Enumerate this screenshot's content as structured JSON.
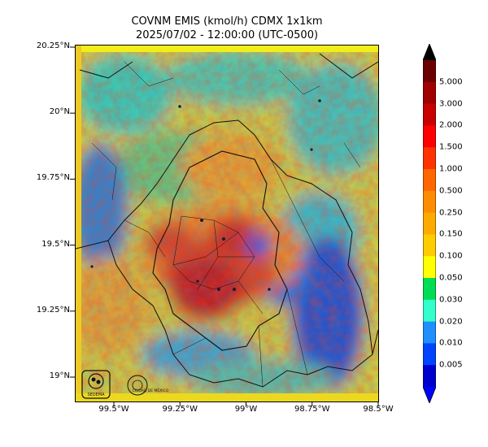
{
  "title_line1": "COVNM EMIS (kmol/h) CDMX 1x1km",
  "title_line2": "2025/07/02 - 12:00:00 (UTC-0500)",
  "lat_ticks": [
    {
      "label": "20.25°N",
      "value": 20.25
    },
    {
      "label": "20°N",
      "value": 20.0
    },
    {
      "label": "19.75°N",
      "value": 19.75
    },
    {
      "label": "19.5°N",
      "value": 19.5
    },
    {
      "label": "19.25°N",
      "value": 19.25
    },
    {
      "label": "19°N",
      "value": 19.0
    }
  ],
  "lon_ticks": [
    {
      "label": "99.5°W",
      "value": -99.5
    },
    {
      "label": "99.25°W",
      "value": -99.25
    },
    {
      "label": "99°W",
      "value": -99.0
    },
    {
      "label": "98.75°W",
      "value": -98.75
    },
    {
      "label": "98.5°W",
      "value": -98.5
    }
  ],
  "colorbar": {
    "levels": [
      "5.000",
      "3.000",
      "2.000",
      "1.500",
      "1.000",
      "0.500",
      "0.250",
      "0.150",
      "0.100",
      "0.050",
      "0.030",
      "0.020",
      "0.010",
      "0.005"
    ],
    "colors": [
      "#6b0000",
      "#a00000",
      "#c80000",
      "#ff0000",
      "#ff3300",
      "#ff6600",
      "#ff8c00",
      "#ffaa00",
      "#ffcc00",
      "#ffff00",
      "#00dd55",
      "#33ffcc",
      "#1e90ff",
      "#0044ff",
      "#0000cc"
    ],
    "extend": "both"
  },
  "logos": {
    "sedema": "SEDEMA",
    "cdmx": "CIUDAD DE MÉXICO"
  }
}
